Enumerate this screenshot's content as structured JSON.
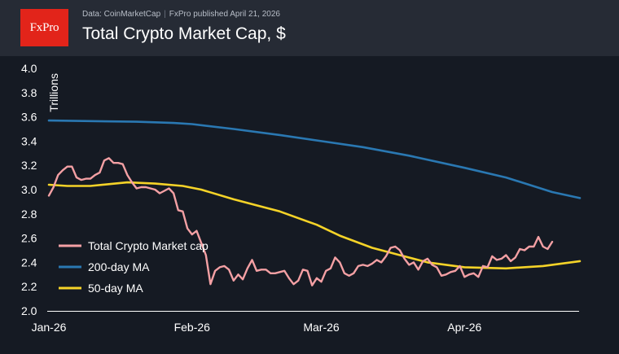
{
  "header": {
    "logo": "FxPro",
    "source": "Data: CoinMarketCap",
    "publisher": "FxPro published April 21, 2026",
    "title": "Total Crypto Market Cap, $"
  },
  "chart_data": {
    "type": "line",
    "title": "Total Crypto Market Cap, $",
    "ylabel": "Trillions",
    "xlabel": "",
    "ylim": [
      2.0,
      4.0
    ],
    "yticks": [
      "2.0",
      "2.2",
      "2.4",
      "2.6",
      "2.8",
      "3.0",
      "3.2",
      "3.4",
      "3.6",
      "3.8",
      "4.0"
    ],
    "x_start": "2026-01-01",
    "x_end": "2026-04-20",
    "xticks": [
      {
        "label": "Jan-26",
        "date": "2026-01-01"
      },
      {
        "label": "Feb-26",
        "date": "2026-02-01"
      },
      {
        "label": "Mar-26",
        "date": "2026-03-01"
      },
      {
        "label": "Apr-26",
        "date": "2026-04-01"
      }
    ],
    "grid": false,
    "legend": "bottom-left",
    "series": [
      {
        "name": "Total Crypto Market cap",
        "color": "#f4a0a4",
        "points": [
          [
            "2026-01-01",
            2.95
          ],
          [
            "2026-01-02",
            3.02
          ],
          [
            "2026-01-03",
            3.12
          ],
          [
            "2026-01-04",
            3.16
          ],
          [
            "2026-01-05",
            3.19
          ],
          [
            "2026-01-06",
            3.19
          ],
          [
            "2026-01-07",
            3.1
          ],
          [
            "2026-01-08",
            3.08
          ],
          [
            "2026-01-09",
            3.09
          ],
          [
            "2026-01-10",
            3.09
          ],
          [
            "2026-01-11",
            3.12
          ],
          [
            "2026-01-12",
            3.14
          ],
          [
            "2026-01-13",
            3.24
          ],
          [
            "2026-01-14",
            3.26
          ],
          [
            "2026-01-15",
            3.22
          ],
          [
            "2026-01-16",
            3.22
          ],
          [
            "2026-01-17",
            3.21
          ],
          [
            "2026-01-18",
            3.12
          ],
          [
            "2026-01-19",
            3.06
          ],
          [
            "2026-01-20",
            3.01
          ],
          [
            "2026-01-21",
            3.02
          ],
          [
            "2026-01-22",
            3.02
          ],
          [
            "2026-01-23",
            3.01
          ],
          [
            "2026-01-24",
            3.0
          ],
          [
            "2026-01-25",
            2.97
          ],
          [
            "2026-01-26",
            2.99
          ],
          [
            "2026-01-27",
            3.01
          ],
          [
            "2026-01-28",
            2.97
          ],
          [
            "2026-01-29",
            2.83
          ],
          [
            "2026-01-30",
            2.82
          ],
          [
            "2026-01-31",
            2.68
          ],
          [
            "2026-02-01",
            2.63
          ],
          [
            "2026-02-02",
            2.66
          ],
          [
            "2026-02-03",
            2.56
          ],
          [
            "2026-02-04",
            2.46
          ],
          [
            "2026-02-05",
            2.22
          ],
          [
            "2026-02-06",
            2.33
          ],
          [
            "2026-02-07",
            2.36
          ],
          [
            "2026-02-08",
            2.37
          ],
          [
            "2026-02-09",
            2.34
          ],
          [
            "2026-02-10",
            2.25
          ],
          [
            "2026-02-11",
            2.3
          ],
          [
            "2026-02-12",
            2.26
          ],
          [
            "2026-02-13",
            2.35
          ],
          [
            "2026-02-14",
            2.42
          ],
          [
            "2026-02-15",
            2.33
          ],
          [
            "2026-02-16",
            2.34
          ],
          [
            "2026-02-17",
            2.34
          ],
          [
            "2026-02-18",
            2.31
          ],
          [
            "2026-02-19",
            2.31
          ],
          [
            "2026-02-20",
            2.32
          ],
          [
            "2026-02-21",
            2.33
          ],
          [
            "2026-02-22",
            2.27
          ],
          [
            "2026-02-23",
            2.22
          ],
          [
            "2026-02-24",
            2.25
          ],
          [
            "2026-02-25",
            2.34
          ],
          [
            "2026-02-26",
            2.33
          ],
          [
            "2026-02-27",
            2.21
          ],
          [
            "2026-02-28",
            2.27
          ],
          [
            "2026-03-01",
            2.24
          ],
          [
            "2026-03-02",
            2.33
          ],
          [
            "2026-03-03",
            2.35
          ],
          [
            "2026-03-04",
            2.44
          ],
          [
            "2026-03-05",
            2.4
          ],
          [
            "2026-03-06",
            2.31
          ],
          [
            "2026-03-07",
            2.29
          ],
          [
            "2026-03-08",
            2.31
          ],
          [
            "2026-03-09",
            2.37
          ],
          [
            "2026-03-10",
            2.38
          ],
          [
            "2026-03-11",
            2.37
          ],
          [
            "2026-03-12",
            2.39
          ],
          [
            "2026-03-13",
            2.42
          ],
          [
            "2026-03-14",
            2.4
          ],
          [
            "2026-03-15",
            2.45
          ],
          [
            "2026-03-16",
            2.52
          ],
          [
            "2026-03-17",
            2.53
          ],
          [
            "2026-03-18",
            2.5
          ],
          [
            "2026-03-19",
            2.43
          ],
          [
            "2026-03-20",
            2.38
          ],
          [
            "2026-03-21",
            2.4
          ],
          [
            "2026-03-22",
            2.34
          ],
          [
            "2026-03-23",
            2.41
          ],
          [
            "2026-03-24",
            2.43
          ],
          [
            "2026-03-25",
            2.38
          ],
          [
            "2026-03-26",
            2.36
          ],
          [
            "2026-03-27",
            2.29
          ],
          [
            "2026-03-28",
            2.3
          ],
          [
            "2026-03-29",
            2.32
          ],
          [
            "2026-03-30",
            2.33
          ],
          [
            "2026-03-31",
            2.37
          ],
          [
            "2026-04-01",
            2.28
          ],
          [
            "2026-04-02",
            2.3
          ],
          [
            "2026-04-03",
            2.31
          ],
          [
            "2026-04-04",
            2.28
          ],
          [
            "2026-04-05",
            2.37
          ],
          [
            "2026-04-06",
            2.36
          ],
          [
            "2026-04-07",
            2.45
          ],
          [
            "2026-04-08",
            2.42
          ],
          [
            "2026-04-09",
            2.43
          ],
          [
            "2026-04-10",
            2.46
          ],
          [
            "2026-04-11",
            2.41
          ],
          [
            "2026-04-12",
            2.44
          ],
          [
            "2026-04-13",
            2.51
          ],
          [
            "2026-04-14",
            2.5
          ],
          [
            "2026-04-15",
            2.53
          ],
          [
            "2026-04-16",
            2.53
          ],
          [
            "2026-04-17",
            2.61
          ],
          [
            "2026-04-18",
            2.53
          ],
          [
            "2026-04-19",
            2.51
          ],
          [
            "2026-04-20",
            2.57
          ]
        ]
      },
      {
        "name": "200-day MA",
        "color": "#2a78b2",
        "points": [
          [
            "2026-01-01",
            3.57
          ],
          [
            "2026-01-10",
            3.565
          ],
          [
            "2026-01-20",
            3.56
          ],
          [
            "2026-01-28",
            3.55
          ],
          [
            "2026-02-01",
            3.54
          ],
          [
            "2026-02-10",
            3.5
          ],
          [
            "2026-02-20",
            3.45
          ],
          [
            "2026-03-01",
            3.4
          ],
          [
            "2026-03-10",
            3.35
          ],
          [
            "2026-03-20",
            3.28
          ],
          [
            "2026-04-01",
            3.18
          ],
          [
            "2026-04-10",
            3.1
          ],
          [
            "2026-04-20",
            2.98
          ],
          [
            "2026-04-26",
            2.93
          ]
        ]
      },
      {
        "name": "50-day MA",
        "color": "#f5d328",
        "points": [
          [
            "2026-01-01",
            3.04
          ],
          [
            "2026-01-05",
            3.03
          ],
          [
            "2026-01-10",
            3.03
          ],
          [
            "2026-01-18",
            3.06
          ],
          [
            "2026-01-24",
            3.05
          ],
          [
            "2026-01-30",
            3.03
          ],
          [
            "2026-02-03",
            3.0
          ],
          [
            "2026-02-10",
            2.92
          ],
          [
            "2026-02-20",
            2.82
          ],
          [
            "2026-02-28",
            2.71
          ],
          [
            "2026-03-05",
            2.62
          ],
          [
            "2026-03-12",
            2.52
          ],
          [
            "2026-03-18",
            2.46
          ],
          [
            "2026-03-24",
            2.4
          ],
          [
            "2026-04-01",
            2.36
          ],
          [
            "2026-04-10",
            2.35
          ],
          [
            "2026-04-18",
            2.37
          ],
          [
            "2026-04-26",
            2.41
          ]
        ]
      }
    ]
  }
}
